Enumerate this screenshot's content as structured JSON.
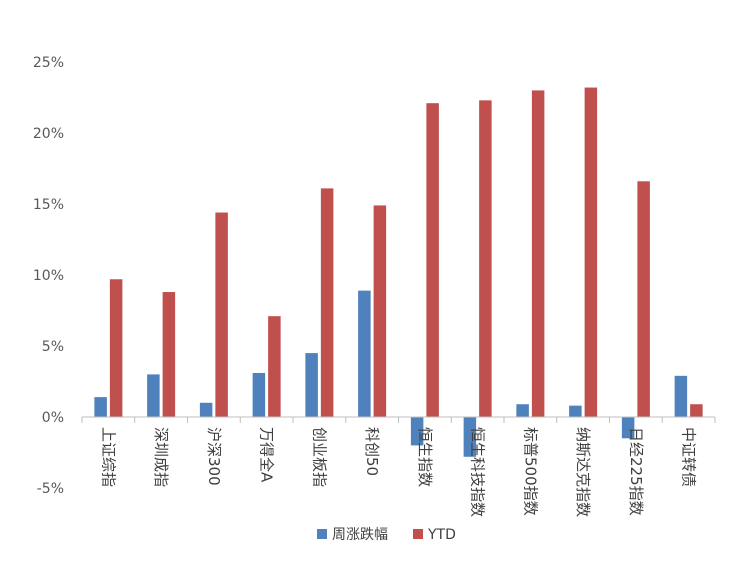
{
  "chart_data": {
    "type": "bar",
    "title": "",
    "xlabel": "",
    "ylabel": "",
    "ylim": [
      -5,
      25
    ],
    "yticks": [
      25,
      20,
      15,
      10,
      5,
      0,
      -5
    ],
    "ytick_labels": [
      "25%",
      "20%",
      "15%",
      "10%",
      "5%",
      "0%",
      "-5%"
    ],
    "grid": false,
    "legend_position": "bottom",
    "categories": [
      "上证综指",
      "深圳成指",
      "沪深300",
      "万得全A",
      "创业板指",
      "科创50",
      "恒生指数",
      "恒生科技指数",
      "标普500指数",
      "纳斯达克指数",
      "日经225指数",
      "中证转债"
    ],
    "series": [
      {
        "name": "周涨跌幅",
        "color": "#4f81bd",
        "values": [
          1.4,
          3.0,
          1.0,
          3.1,
          4.5,
          8.9,
          -2.0,
          -2.8,
          0.9,
          0.8,
          -1.5,
          2.9
        ]
      },
      {
        "name": "YTD",
        "color": "#c0504d",
        "values": [
          9.7,
          8.8,
          14.4,
          7.1,
          16.1,
          14.9,
          22.1,
          22.3,
          23.0,
          23.2,
          16.6,
          0.9
        ]
      }
    ]
  }
}
